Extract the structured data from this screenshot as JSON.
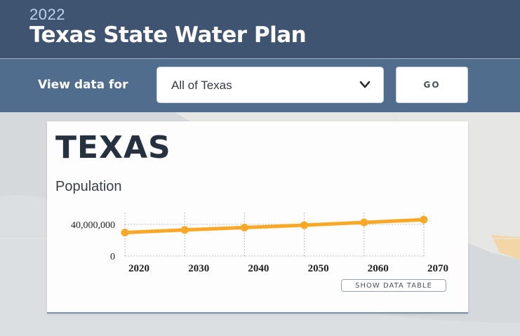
{
  "header": {
    "year": "2022",
    "title": "Texas State Water Plan"
  },
  "toolbar": {
    "view_label": "View data for",
    "region_select": {
      "value": "All of Texas"
    },
    "go_label": "GO"
  },
  "card": {
    "region": "TEXAS",
    "metric": "Population",
    "data_table_label": "SHOW DATA TABLE"
  },
  "colors": {
    "header": "#3f5470",
    "toolbar": "#506d8e",
    "series": "#f9a825"
  },
  "icons": {
    "dropdown": "chevron-down-icon"
  },
  "chart_data": {
    "type": "line",
    "title": "",
    "xlabel": "",
    "ylabel": "",
    "x": [
      2020,
      2030,
      2040,
      2050,
      2060,
      2070
    ],
    "x_tick_labels": [
      "2020",
      "2030",
      "2040",
      "2050",
      "2060",
      "2070"
    ],
    "y_tick_labels": [
      "0",
      "40,000,000"
    ],
    "y_ticks": [
      0,
      40000000
    ],
    "ylim": [
      0,
      55000000
    ],
    "grid": true,
    "series": [
      {
        "values": [
          29700000,
          33000000,
          36000000,
          39000000,
          42500000,
          46000000
        ]
      }
    ]
  }
}
